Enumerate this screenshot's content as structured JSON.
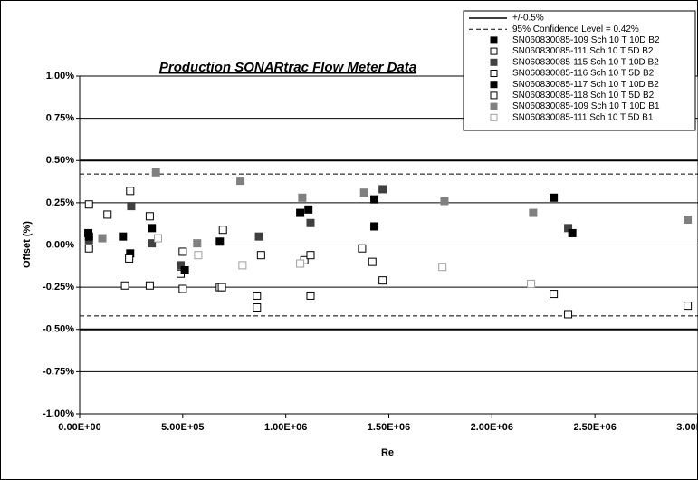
{
  "chart_data": {
    "type": "scatter",
    "title": "Production SONARtrac Flow Meter Data",
    "x_label": "Re",
    "y_label": "Offset (%)",
    "xlim": [
      0,
      3000000
    ],
    "ylim": [
      -1,
      1
    ],
    "xticks": [
      {
        "value": 0,
        "label": "0.00E+00"
      },
      {
        "value": 500000,
        "label": "5.00E+05"
      },
      {
        "value": 1000000,
        "label": "1.00E+06"
      },
      {
        "value": 1500000,
        "label": "1.50E+06"
      },
      {
        "value": 2000000,
        "label": "2.00E+06"
      },
      {
        "value": 2500000,
        "label": "2.50E+06"
      },
      {
        "value": 3000000,
        "label": "3.00E+06"
      }
    ],
    "yticks": [
      {
        "value": -1,
        "label": "-1.00%"
      },
      {
        "value": -0.75,
        "label": "-0.75%"
      },
      {
        "value": -0.5,
        "label": "-0.50%"
      },
      {
        "value": -0.25,
        "label": "-0.25%"
      },
      {
        "value": 0,
        "label": "0.00%"
      },
      {
        "value": 0.25,
        "label": "0.25%"
      },
      {
        "value": 0.5,
        "label": "0.50%"
      },
      {
        "value": 0.75,
        "label": "0.75%"
      },
      {
        "value": 1,
        "label": "1.00%"
      }
    ],
    "grid": true,
    "legend": "top-right",
    "reference_lines": [
      {
        "name": "+/-0.5%",
        "values": [
          0.5,
          -0.5
        ],
        "color": "#000000",
        "dashed": false
      },
      {
        "name": "95% Confidence Level =  0.42%",
        "values": [
          0.42,
          -0.42
        ],
        "color": "#000000",
        "dashed": true
      }
    ],
    "series": [
      {
        "name": "SN060830085-109 Sch 10 T 10D B2",
        "color": "#000000",
        "marker_fill": "#000000",
        "x": [
          42000,
          210000,
          245000,
          1070000,
          1430000,
          2300000
        ],
        "y": [
          0.07,
          0.05,
          -0.05,
          0.19,
          0.27,
          0.28
        ]
      },
      {
        "name": "SN060830085-111 Sch 10 T 5D B2",
        "color": "#000000",
        "marker_fill": "#ffffff",
        "x": [
          45000,
          135000,
          245000,
          490000,
          695000,
          860000,
          1120000,
          1420000
        ],
        "y": [
          0.24,
          0.18,
          0.32,
          -0.17,
          0.09,
          -0.3,
          -0.3,
          -0.1
        ]
      },
      {
        "name": "SN060830085-115 Sch 10 T 10D B2",
        "color": "#404040",
        "marker_fill": "#404040",
        "x": [
          45000,
          250000,
          350000,
          490000,
          870000,
          1120000,
          1470000,
          2370000
        ],
        "y": [
          0.03,
          0.23,
          0.01,
          -0.12,
          0.05,
          0.13,
          0.33,
          0.1
        ]
      },
      {
        "name": "SN060830085-116 Sch 10 T 5D B2",
        "color": "#000000",
        "marker_fill": "#ffffff",
        "x": [
          45000,
          240000,
          340000,
          500000,
          680000,
          860000,
          1090000,
          1370000
        ],
        "y": [
          -0.02,
          -0.08,
          0.17,
          -0.04,
          -0.25,
          -0.37,
          -0.09,
          -0.02
        ]
      },
      {
        "name": "SN060830085-117 Sch 10 T 10D B2",
        "color": "#000000",
        "marker_fill": "#000000",
        "x": [
          45000,
          350000,
          510000,
          680000,
          1110000,
          1430000,
          2390000
        ],
        "y": [
          0.05,
          0.1,
          -0.15,
          0.02,
          0.21,
          0.11,
          0.07
        ]
      },
      {
        "name": "SN060830085-118 Sch 10 T 5D B2",
        "color": "#000000",
        "marker_fill": "#ffffff",
        "x": [
          220000,
          340000,
          500000,
          690000,
          880000,
          1120000,
          1470000,
          2300000,
          2370000,
          2950000
        ],
        "y": [
          -0.24,
          -0.24,
          -0.26,
          -0.25,
          -0.06,
          -0.06,
          -0.21,
          -0.29,
          -0.41,
          -0.36
        ]
      },
      {
        "name": "SN060830085-109 Sch 10 T 10D B1",
        "color": "#808080",
        "marker_fill": "#808080",
        "x": [
          110000,
          370000,
          570000,
          780000,
          1080000,
          1380000,
          1770000,
          2200000,
          2950000
        ],
        "y": [
          0.04,
          0.43,
          0.01,
          0.38,
          0.28,
          0.31,
          0.26,
          0.19,
          0.15
        ]
      },
      {
        "name": "SN060830085-111 Sch 10 T 5D B1",
        "color": "#a0a0a0",
        "marker_fill": "#ffffff",
        "x": [
          380000,
          575000,
          790000,
          1070000,
          1760000,
          2190000
        ],
        "y": [
          0.04,
          -0.06,
          -0.12,
          -0.11,
          -0.13,
          -0.23
        ]
      }
    ]
  }
}
